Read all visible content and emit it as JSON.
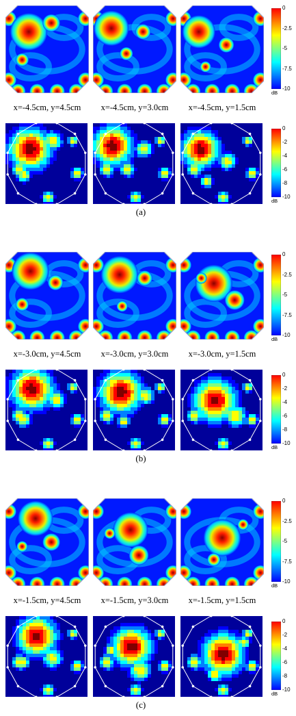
{
  "figure": {
    "groups": [
      {
        "label": "(a)",
        "captions": [
          "x=-4.5cm, y=4.5cm",
          "x=-4.5cm, y=3.0cm",
          "x=-4.5cm, y=1.5cm"
        ],
        "colorbar_top": {
          "ticks": [
            "0",
            "-2.5",
            "-5",
            "-7.5",
            "-10"
          ],
          "unit": "dB"
        },
        "colorbar_bottom": {
          "ticks": [
            "0",
            "-2",
            "-4",
            "-6",
            "-8",
            "-10"
          ],
          "unit": "dB"
        }
      },
      {
        "label": "(b)",
        "captions": [
          "x=-3.0cm, y=4.5cm",
          "x=-3.0cm, y=3.0cm",
          "x=-3.0cm, y=1.5cm"
        ],
        "colorbar_top": {
          "ticks": [
            "0",
            "-2.5",
            "-5",
            "-7.5",
            "-10"
          ],
          "unit": "dB"
        },
        "colorbar_bottom": {
          "ticks": [
            "0",
            "-2",
            "-4",
            "-6",
            "-8",
            "-10"
          ],
          "unit": "dB"
        }
      },
      {
        "label": "(c)",
        "captions": [
          "x=-1.5cm, y=4.5cm",
          "x=-1.5cm, y=3.0cm",
          "x=-1.5cm, y=1.5cm"
        ],
        "colorbar_top": {
          "ticks": [
            "0",
            "-2.5",
            "-5",
            "-7.5",
            "-10"
          ],
          "unit": "dB"
        },
        "colorbar_bottom": {
          "ticks": [
            "0",
            "-2",
            "-4",
            "-6",
            "-8",
            "-10"
          ],
          "unit": "dB"
        }
      }
    ],
    "colormap": [
      "#00008f",
      "#0000ff",
      "#0080ff",
      "#00ffff",
      "#80ff80",
      "#ffff00",
      "#ff8000",
      "#ff0000",
      "#800000"
    ]
  }
}
